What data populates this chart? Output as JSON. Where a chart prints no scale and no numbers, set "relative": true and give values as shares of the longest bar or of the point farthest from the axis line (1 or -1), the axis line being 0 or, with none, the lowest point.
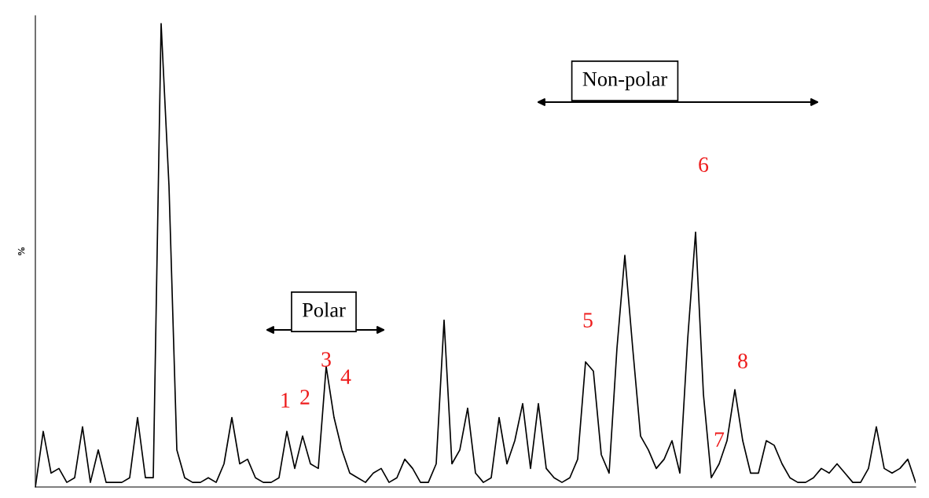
{
  "chart_data": {
    "type": "line",
    "relative": true,
    "ylabel": "%",
    "color": "#000000",
    "categories": [
      null,
      null,
      null,
      null,
      null,
      null,
      null,
      null,
      null,
      null,
      null,
      null,
      null,
      null,
      null,
      null,
      null,
      null,
      null,
      null,
      null,
      null,
      null,
      null,
      null,
      null,
      null,
      null,
      null,
      null,
      null,
      null,
      null,
      null,
      null,
      null,
      null,
      null,
      null,
      null,
      null,
      null,
      null,
      null,
      null,
      null,
      null,
      null,
      null,
      null,
      null,
      null,
      null,
      null,
      null,
      null,
      null,
      null,
      null,
      null,
      null,
      null,
      null,
      null,
      null,
      null,
      null,
      null,
      null,
      null,
      null,
      null,
      null,
      null,
      null,
      null,
      null,
      null,
      null,
      null,
      null,
      null,
      null,
      null,
      null,
      null,
      null,
      null,
      null,
      null,
      null,
      null,
      null,
      null,
      null,
      null,
      null,
      null,
      null,
      null,
      null,
      null,
      null,
      null,
      null,
      null,
      null,
      null,
      null,
      null,
      null,
      null,
      null
    ],
    "values": [
      0.0,
      0.12,
      0.03,
      0.04,
      0.01,
      0.02,
      0.13,
      0.01,
      0.08,
      0.01,
      0.01,
      0.01,
      0.02,
      0.15,
      0.02,
      0.02,
      1.0,
      0.65,
      0.08,
      0.02,
      0.01,
      0.01,
      0.02,
      0.01,
      0.05,
      0.15,
      0.05,
      0.06,
      0.02,
      0.01,
      0.01,
      0.02,
      0.12,
      0.04,
      0.11,
      0.05,
      0.04,
      0.26,
      0.15,
      0.08,
      0.03,
      0.02,
      0.01,
      0.03,
      0.04,
      0.01,
      0.02,
      0.06,
      0.04,
      0.01,
      0.01,
      0.05,
      0.36,
      0.05,
      0.08,
      0.17,
      0.03,
      0.01,
      0.02,
      0.15,
      0.05,
      0.1,
      0.18,
      0.04,
      0.18,
      0.04,
      0.02,
      0.01,
      0.02,
      0.06,
      0.27,
      0.25,
      0.07,
      0.03,
      0.3,
      0.5,
      0.3,
      0.11,
      0.08,
      0.04,
      0.06,
      0.1,
      0.03,
      0.32,
      0.55,
      0.2,
      0.02,
      0.05,
      0.1,
      0.21,
      0.1,
      0.03,
      0.03,
      0.1,
      0.09,
      0.05,
      0.02,
      0.01,
      0.01,
      0.02,
      0.04,
      0.03,
      0.05,
      0.03,
      0.01,
      0.01,
      0.04,
      0.13,
      0.04,
      0.03,
      0.04,
      0.06,
      0.01
    ],
    "annotations": [
      "Non-polar",
      "Polar",
      "1",
      "2",
      "3",
      "4",
      "5",
      "6",
      "7",
      "8"
    ]
  }
}
